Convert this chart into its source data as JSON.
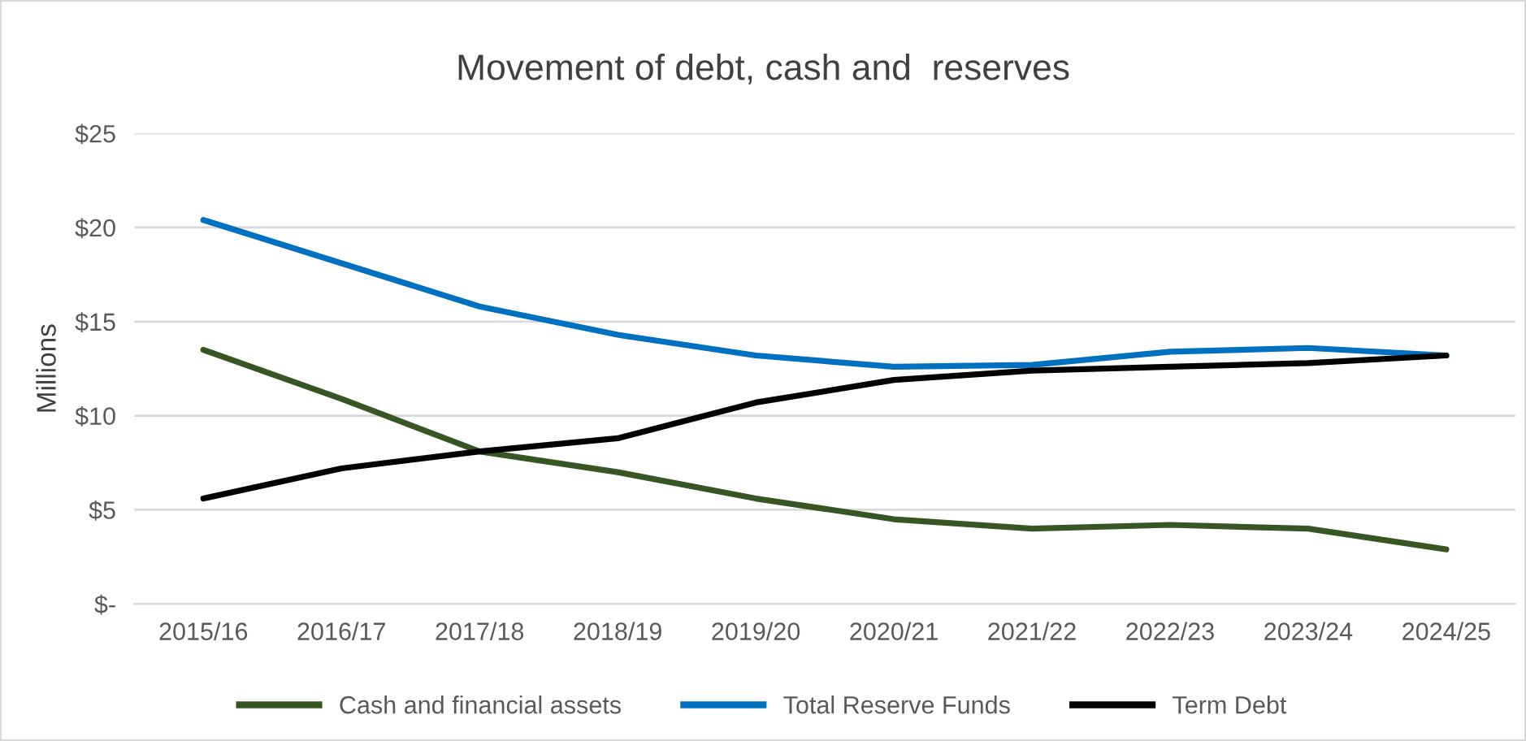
{
  "chart_data": {
    "type": "line",
    "title": "Movement of debt, cash and  reserves",
    "ylabel": "Millions",
    "categories": [
      "2015/16",
      "2016/17",
      "2017/18",
      "2018/19",
      "2019/20",
      "2020/21",
      "2021/22",
      "2022/23",
      "2023/24",
      "2024/25"
    ],
    "series": [
      {
        "name": "Cash and financial assets",
        "color": "#375623",
        "values": [
          13.5,
          10.9,
          8.1,
          7.0,
          5.6,
          4.5,
          4.0,
          4.2,
          4.0,
          2.9
        ]
      },
      {
        "name": "Total Reserve Funds",
        "color": "#0070c0",
        "values": [
          20.4,
          18.1,
          15.8,
          14.3,
          13.2,
          12.6,
          12.7,
          13.4,
          13.6,
          13.2
        ]
      },
      {
        "name": "Term Debt",
        "color": "#000000",
        "values": [
          5.6,
          7.2,
          8.1,
          8.8,
          10.7,
          11.9,
          12.4,
          12.6,
          12.8,
          13.2
        ]
      }
    ],
    "ylim": [
      0,
      25
    ],
    "yticks": [
      {
        "value": 0,
        "label": "$-"
      },
      {
        "value": 5,
        "label": "$5"
      },
      {
        "value": 10,
        "label": "$10"
      },
      {
        "value": 15,
        "label": "$15"
      },
      {
        "value": 20,
        "label": "$20"
      },
      {
        "value": 25,
        "label": "$25"
      }
    ],
    "grid": "y",
    "legend": "bottom",
    "marker": "none",
    "line_style": "solid"
  }
}
